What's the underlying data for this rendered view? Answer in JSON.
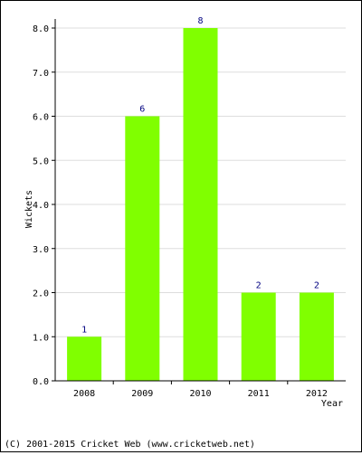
{
  "chart_data": {
    "type": "bar",
    "categories": [
      "2008",
      "2009",
      "2010",
      "2011",
      "2012"
    ],
    "values": [
      1,
      6,
      8,
      2,
      2
    ],
    "data_labels": [
      "1",
      "6",
      "8",
      "2",
      "2"
    ],
    "title": "",
    "xlabel": "Year",
    "ylabel": "Wickets",
    "ylim": [
      0,
      8
    ],
    "yticks": [
      "0.0",
      "1.0",
      "2.0",
      "3.0",
      "4.0",
      "5.0",
      "6.0",
      "7.0",
      "8.0"
    ],
    "grid": true,
    "legend": "none",
    "colors": {
      "bar": "#80ff00",
      "grid": "#dddddd",
      "axis": "#000000",
      "data_label": "#000080"
    }
  },
  "footer": {
    "copyright": "(C) 2001-2015 Cricket Web (www.cricketweb.net)"
  }
}
